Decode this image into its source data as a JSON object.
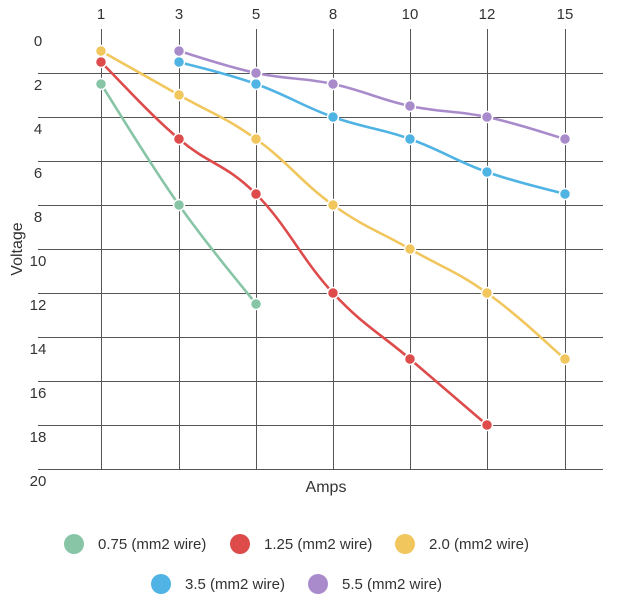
{
  "chart_data": {
    "type": "line",
    "x": [
      1,
      3,
      5,
      8,
      10,
      12,
      15
    ],
    "xlabel": "Amps",
    "ylabel": "Voltage",
    "x_ticks": [
      "1",
      "3",
      "5",
      "8",
      "10",
      "12",
      "15"
    ],
    "x_axis_position": "top",
    "ylim": [
      0,
      20
    ],
    "y_inverted": true,
    "y_ticks": [
      0,
      2,
      4,
      6,
      8,
      10,
      12,
      14,
      16,
      18,
      20
    ],
    "grid": true,
    "legend_position": "bottom",
    "series": [
      {
        "name": "0.75 (mm2 wire)",
        "color": "#88c5a6",
        "values": [
          2.5,
          8,
          12.5,
          null,
          null,
          null,
          null
        ]
      },
      {
        "name": "1.25 (mm2 wire)",
        "color": "#dd4b4b",
        "values": [
          1.5,
          5,
          7.5,
          12,
          15,
          18,
          null
        ]
      },
      {
        "name": "2.0 (mm2 wire)",
        "color": "#f1c65d",
        "values": [
          1,
          3,
          5,
          8,
          10,
          12,
          15
        ]
      },
      {
        "name": "3.5 (mm2 wire)",
        "color": "#4fb3e3",
        "values": [
          null,
          1.5,
          2.5,
          4,
          5,
          6.5,
          7.5
        ]
      },
      {
        "name": "5.5 (mm2 wire)",
        "color": "#a98bcc",
        "values": [
          null,
          1,
          2,
          2.5,
          3.5,
          4,
          5
        ]
      }
    ]
  }
}
